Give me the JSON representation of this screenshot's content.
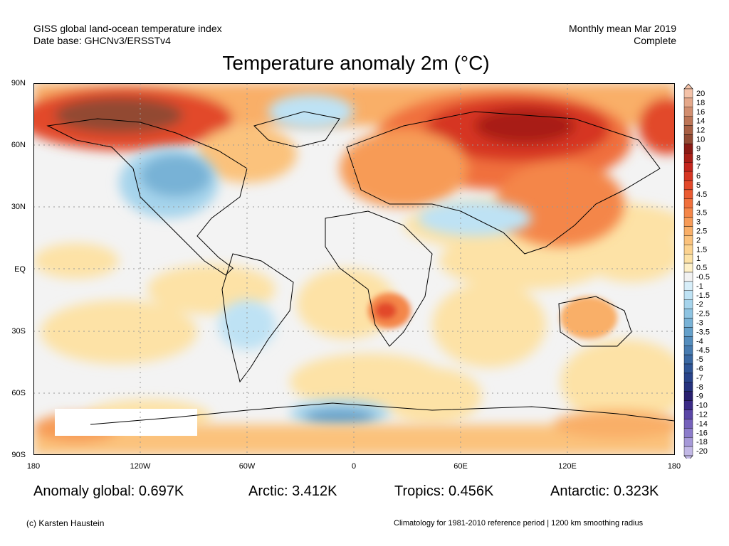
{
  "header": {
    "line1_left": "GISS global land-ocean temperature index",
    "line2_left": "Date base: GHCNv3/ERSSTv4",
    "line1_right": "Monthly mean Mar 2019",
    "line2_right": "Complete"
  },
  "title": "Temperature anomaly 2m (°C)",
  "y_ticks": [
    "90N",
    "60N",
    "30N",
    "EQ",
    "30S",
    "60S",
    "90S"
  ],
  "x_ticks": [
    "180",
    "120W",
    "60W",
    "0",
    "60E",
    "120E",
    "180"
  ],
  "colorbar": {
    "labels": [
      "20",
      "18",
      "16",
      "14",
      "12",
      "10",
      "9",
      "8",
      "7",
      "6",
      "5",
      "4.5",
      "4",
      "3.5",
      "3",
      "2.5",
      "2",
      "1.5",
      "1",
      "0.5",
      "-0.5",
      "-1",
      "-1.5",
      "-2",
      "-2.5",
      "-3",
      "-3.5",
      "-4",
      "-4.5",
      "-5",
      "-6",
      "-7",
      "-8",
      "-9",
      "-10",
      "-12",
      "-14",
      "-16",
      "-18",
      "-20"
    ],
    "colors": [
      "#f4c2a8",
      "#e5a88a",
      "#d28e6f",
      "#bd7556",
      "#a85f43",
      "#924a33",
      "#8a1a14",
      "#a81e17",
      "#c4251d",
      "#d63623",
      "#e2482a",
      "#ea5b32",
      "#f0703c",
      "#f48648",
      "#f79b57",
      "#f9af68",
      "#fbc27c",
      "#fcd390",
      "#fde2a6",
      "#fef0c8",
      "#f2f2f2",
      "#d7eef9",
      "#bee2f4",
      "#a6d4ec",
      "#8ec4e2",
      "#78b2d6",
      "#64a0ca",
      "#548dbd",
      "#477bb0",
      "#3a68a2",
      "#2f5596",
      "#28438a",
      "#25317d",
      "#281f6f",
      "#3b2a86",
      "#5a46a6",
      "#7561bb",
      "#8c7ccb",
      "#a699d8",
      "#c2b8e6"
    ]
  },
  "stats": {
    "global": "Anomaly global: 0.697K",
    "arctic": "Arctic: 3.412K",
    "tropics": "Tropics: 0.456K",
    "antarctic": "Antarctic: 0.323K"
  },
  "footer": {
    "left": "(c) Karsten Haustein",
    "right": "Climatology for 1981-2010 reference period | 1200 km smoothing radius"
  }
}
